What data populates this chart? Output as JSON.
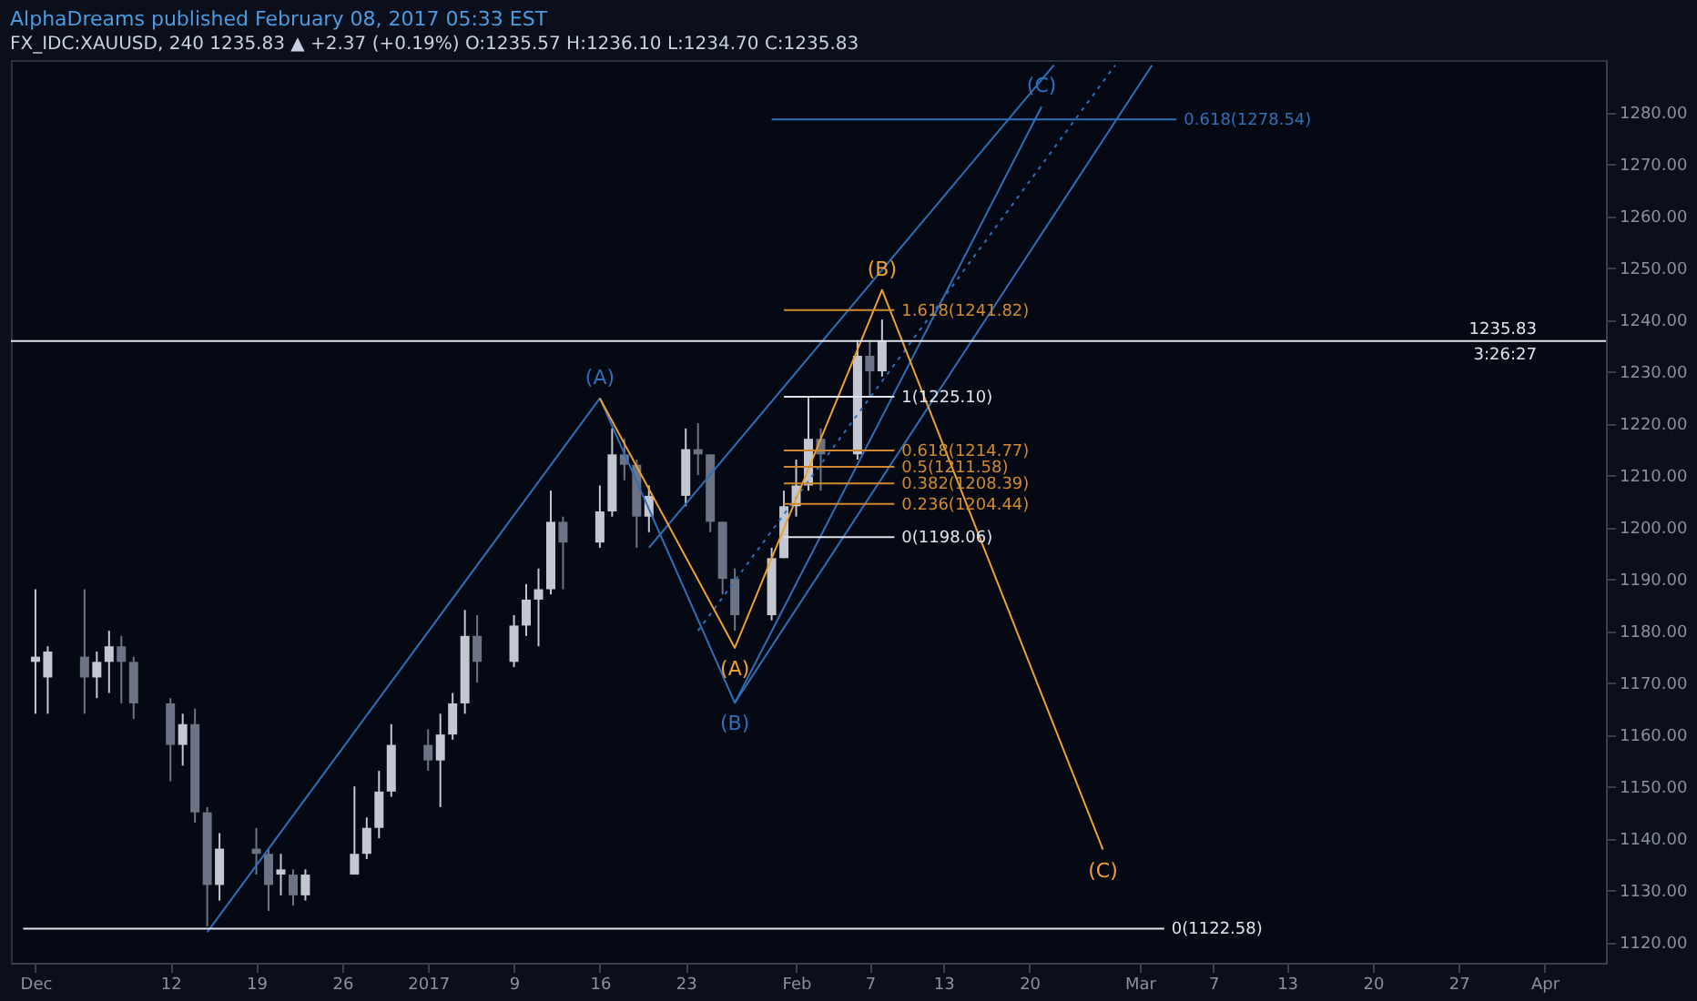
{
  "chart_data": {
    "type": "candlestick",
    "title": "AlphaDreams published February 08, 2017 05:33 EST",
    "subtitle": "FX_IDC:XAUUSD, 240 1235.83 ▲ +2.37 (+0.19%) O:1235.57 H:1236.10 L:1234.70 C:1235.83",
    "x": [
      "2016-12-01",
      "2016-12-02",
      "2016-12-05",
      "2016-12-06",
      "2016-12-07",
      "2016-12-08",
      "2016-12-09",
      "2016-12-12",
      "2016-12-13",
      "2016-12-14",
      "2016-12-15",
      "2016-12-16",
      "2016-12-19",
      "2016-12-20",
      "2016-12-21",
      "2016-12-22",
      "2016-12-23",
      "2016-12-27",
      "2016-12-28",
      "2016-12-29",
      "2016-12-30",
      "2017-01-02",
      "2017-01-03",
      "2017-01-04",
      "2017-01-05",
      "2017-01-06",
      "2017-01-09",
      "2017-01-10",
      "2017-01-11",
      "2017-01-12",
      "2017-01-13",
      "2017-01-16",
      "2017-01-17",
      "2017-01-18",
      "2017-01-19",
      "2017-01-20",
      "2017-01-23",
      "2017-01-24",
      "2017-01-25",
      "2017-01-26",
      "2017-01-27",
      "2017-01-30",
      "2017-01-31",
      "2017-02-01",
      "2017-02-02",
      "2017-02-03",
      "2017-02-06",
      "2017-02-07",
      "2017-02-08"
    ],
    "ohlc": [
      [
        1174,
        1188,
        1164,
        1175
      ],
      [
        1171,
        1177,
        1164,
        1176
      ],
      [
        1175,
        1188,
        1164,
        1171
      ],
      [
        1171,
        1176,
        1167,
        1174
      ],
      [
        1174,
        1180,
        1168,
        1177
      ],
      [
        1177,
        1179,
        1166,
        1174
      ],
      [
        1174,
        1175,
        1163,
        1166
      ],
      [
        1166,
        1167,
        1151,
        1158
      ],
      [
        1158,
        1164,
        1154,
        1162
      ],
      [
        1162,
        1165,
        1143,
        1145
      ],
      [
        1145,
        1146,
        1123,
        1131
      ],
      [
        1131,
        1141,
        1128,
        1138
      ],
      [
        1138,
        1142,
        1133,
        1137
      ],
      [
        1137,
        1138,
        1126,
        1131
      ],
      [
        1133,
        1137,
        1129,
        1134
      ],
      [
        1133,
        1134,
        1127,
        1129
      ],
      [
        1129,
        1134,
        1128,
        1133
      ],
      [
        1133,
        1150,
        1133,
        1137
      ],
      [
        1137,
        1144,
        1136,
        1142
      ],
      [
        1142,
        1153,
        1140,
        1149
      ],
      [
        1149,
        1162,
        1148,
        1158
      ],
      [
        1158,
        1161,
        1153,
        1155
      ],
      [
        1155,
        1164,
        1146,
        1160
      ],
      [
        1160,
        1168,
        1159,
        1166
      ],
      [
        1166,
        1184,
        1164,
        1179
      ],
      [
        1179,
        1183,
        1170,
        1174
      ],
      [
        1174,
        1183,
        1173,
        1181
      ],
      [
        1181,
        1189,
        1179,
        1186
      ],
      [
        1186,
        1192,
        1177,
        1188
      ],
      [
        1188,
        1207,
        1187,
        1201
      ],
      [
        1201,
        1202,
        1188,
        1197
      ],
      [
        1197,
        1208,
        1196,
        1203
      ],
      [
        1203,
        1219,
        1202,
        1214
      ],
      [
        1214,
        1217,
        1209,
        1212
      ],
      [
        1212,
        1213,
        1196,
        1202
      ],
      [
        1202,
        1208,
        1199,
        1206
      ],
      [
        1206,
        1219,
        1204,
        1215
      ],
      [
        1215,
        1220,
        1210,
        1214
      ],
      [
        1214,
        1214,
        1199,
        1201
      ],
      [
        1201,
        1201,
        1187,
        1190
      ],
      [
        1190,
        1192,
        1180,
        1183
      ],
      [
        1183,
        1196,
        1182,
        1194
      ],
      [
        1194,
        1207,
        1194,
        1204
      ],
      [
        1204,
        1213,
        1202,
        1208
      ],
      [
        1208,
        1225,
        1207,
        1217
      ],
      [
        1217,
        1219,
        1207,
        1214
      ],
      [
        1214,
        1236,
        1213,
        1233
      ],
      [
        1233,
        1236,
        1225,
        1230
      ],
      [
        1230,
        1240,
        1229,
        1235.83
      ]
    ],
    "colors": [
      "#c3c7d1",
      "#c3c7d1",
      "#6b7385",
      "#c3c7d1",
      "#c3c7d1",
      "#6b7385",
      "#6b7385",
      "#6b7385",
      "#c3c7d1",
      "#6b7385",
      "#6b7385",
      "#c3c7d1",
      "#6b7385",
      "#6b7385",
      "#c3c7d1",
      "#6b7385",
      "#c3c7d1",
      "#c3c7d1",
      "#c3c7d1",
      "#c3c7d1",
      "#c3c7d1",
      "#6b7385",
      "#c3c7d1",
      "#c3c7d1",
      "#c3c7d1",
      "#6b7385",
      "#c3c7d1",
      "#c3c7d1",
      "#c3c7d1",
      "#c3c7d1",
      "#6b7385",
      "#c3c7d1",
      "#c3c7d1",
      "#6b7385",
      "#6b7385",
      "#c3c7d1",
      "#c3c7d1",
      "#6b7385",
      "#6b7385",
      "#6b7385",
      "#6b7385",
      "#c3c7d1",
      "#c3c7d1",
      "#c3c7d1",
      "#c3c7d1",
      "#6b7385",
      "#c3c7d1",
      "#6b7385",
      "#c3c7d1"
    ],
    "series": [
      {
        "type": "line",
        "color": "#2f6fb8",
        "x": [
          "2016-12-15",
          "2017-01-16",
          "2017-01-27",
          "2017-02-21"
        ],
        "values": [
          1121.9,
          1224.8,
          1166.1,
          1281
        ],
        "value_labels": [
          null,
          "(A)",
          "(B)",
          "(C)"
        ]
      },
      {
        "type": "line",
        "color": "#2f6fb8",
        "x": [
          "2017-01-27",
          "2017-03-02"
        ],
        "values": [
          1166.1,
          1289
        ]
      },
      {
        "type": "line",
        "color": "#2f6fb8",
        "line_style": "dotted",
        "x": [
          "2017-01-24",
          "2017-02-27"
        ],
        "values": [
          1180,
          1289
        ]
      },
      {
        "type": "line",
        "color": "#2f6fb8",
        "x": [
          "2017-01-20",
          "2017-02-22"
        ],
        "values": [
          1196,
          1289
        ]
      },
      {
        "type": "line",
        "color": "#f0a030",
        "x": [
          "2017-01-16",
          "2017-01-27",
          "2017-02-08",
          "2017-02-26"
        ],
        "values": [
          1224.8,
          1176.7,
          1245.7,
          1137.8
        ],
        "value_labels": [
          null,
          "(A)",
          "(B)",
          "(C)"
        ]
      },
      {
        "type": "line",
        "color": "#d08a2c",
        "x": [
          "2017-01-31",
          "2017-02-09"
        ],
        "values": [
          1241.82,
          1241.82
        ],
        "value_labels": [
          null,
          "1.618(1241.82)"
        ]
      },
      {
        "type": "line",
        "color": "#dfe3ec",
        "x": [
          "2017-01-31",
          "2017-02-09"
        ],
        "values": [
          1225.1,
          1225.1
        ],
        "value_labels": [
          null,
          "1(1225.10)"
        ]
      },
      {
        "type": "line",
        "color": "#d08a2c",
        "x": [
          "2017-01-31",
          "2017-02-09"
        ],
        "values": [
          1214.77,
          1214.77
        ],
        "value_labels": [
          null,
          "0.618(1214.77)"
        ]
      },
      {
        "type": "line",
        "color": "#d08a2c",
        "x": [
          "2017-01-31",
          "2017-02-09"
        ],
        "values": [
          1211.58,
          1211.58
        ],
        "value_labels": [
          null,
          "0.5(1211.58)"
        ]
      },
      {
        "type": "line",
        "color": "#d08a2c",
        "x": [
          "2017-01-31",
          "2017-02-09"
        ],
        "values": [
          1208.39,
          1208.39
        ],
        "value_labels": [
          null,
          "0.382(1208.39)"
        ]
      },
      {
        "type": "line",
        "color": "#d08a2c",
        "x": [
          "2017-01-31",
          "2017-02-09"
        ],
        "values": [
          1204.44,
          1204.44
        ],
        "value_labels": [
          null,
          "0.236(1204.44)"
        ]
      },
      {
        "type": "line",
        "color": "#dfe3ec",
        "x": [
          "2017-01-31",
          "2017-02-09"
        ],
        "values": [
          1198.06,
          1198.06
        ],
        "value_labels": [
          null,
          "0(1198.06)"
        ]
      },
      {
        "type": "line",
        "color": "#dfe3ec",
        "x": [
          "2016-11-30",
          "2017-03-03"
        ],
        "values": [
          1122.58,
          1122.58
        ],
        "value_labels": [
          null,
          "0(1122.58)"
        ]
      },
      {
        "type": "line",
        "color": "#2f6fb8",
        "x": [
          "2017-01-30",
          "2017-03-04"
        ],
        "values": [
          1278.54,
          1278.54
        ],
        "value_labels": [
          null,
          "0.618(1278.54)"
        ]
      }
    ],
    "ref_lines": [
      {
        "axis": "y",
        "value": 1235.83,
        "label": "1235.83",
        "color": "#dfe3ec"
      }
    ],
    "annotations": [
      "3:26:27"
    ],
    "xlim": [
      "2016-11-29",
      "2017-04-08"
    ],
    "xticks": [
      {
        "value": "2016-12-01",
        "label": "Dec"
      },
      {
        "value": "2016-12-12",
        "label": "12"
      },
      {
        "value": "2016-12-19",
        "label": "19"
      },
      {
        "value": "2016-12-26",
        "label": "26"
      },
      {
        "value": "2017-01-02",
        "label": "2017"
      },
      {
        "value": "2017-01-09",
        "label": "9"
      },
      {
        "value": "2017-01-16",
        "label": "16"
      },
      {
        "value": "2017-01-23",
        "label": "23"
      },
      {
        "value": "2017-02-01",
        "label": "Feb"
      },
      {
        "value": "2017-02-07",
        "label": "7"
      },
      {
        "value": "2017-02-13",
        "label": "13"
      },
      {
        "value": "2017-02-20",
        "label": "20"
      },
      {
        "value": "2017-03-01",
        "label": "Mar"
      },
      {
        "value": "2017-03-07",
        "label": "7"
      },
      {
        "value": "2017-03-13",
        "label": "13"
      },
      {
        "value": "2017-03-20",
        "label": "20"
      },
      {
        "value": "2017-03-27",
        "label": "27"
      },
      {
        "value": "2017-04-03",
        "label": "Apr"
      }
    ],
    "ylim": [
      1116,
      1290
    ],
    "yticks": [
      {
        "value": 1120,
        "label": "1120.00"
      },
      {
        "value": 1130,
        "label": "1130.00"
      },
      {
        "value": 1140,
        "label": "1140.00"
      },
      {
        "value": 1150,
        "label": "1150.00"
      },
      {
        "value": 1160,
        "label": "1160.00"
      },
      {
        "value": 1170,
        "label": "1170.00"
      },
      {
        "value": 1180,
        "label": "1180.00"
      },
      {
        "value": 1190,
        "label": "1190.00"
      },
      {
        "value": 1200,
        "label": "1200.00"
      },
      {
        "value": 1210,
        "label": "1210.00"
      },
      {
        "value": 1220,
        "label": "1220.00"
      },
      {
        "value": 1230,
        "label": "1230.00"
      },
      {
        "value": 1240,
        "label": "1240.00"
      },
      {
        "value": 1250,
        "label": "1250.00"
      },
      {
        "value": 1260,
        "label": "1260.00"
      },
      {
        "value": 1270,
        "label": "1270.00"
      },
      {
        "value": 1280,
        "label": "1280.00"
      }
    ]
  }
}
